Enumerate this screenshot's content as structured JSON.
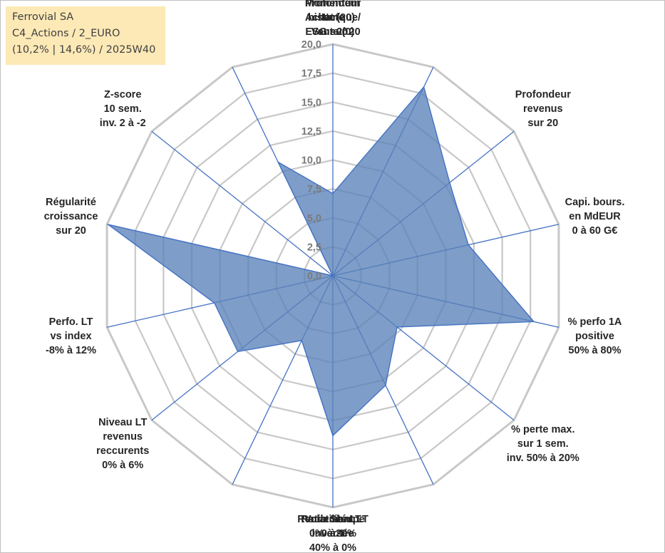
{
  "info": {
    "line1": "Ferrovial SA",
    "line2": "C4_Actions / 2_EURO",
    "line3": "(10,2% | 14,6%) / 2025W40"
  },
  "chart_data": {
    "type": "radar",
    "title": "",
    "rmax": 20,
    "ticks": [
      "0,0",
      "2,5",
      "5,0",
      "7,5",
      "10,0",
      "12,5",
      "15,0",
      "17,5",
      "20,0"
    ],
    "axes": [
      {
        "label": [
          "Note",
          "ESG sur 20"
        ],
        "value": 7.1
      },
      {
        "label": [
          "Profondeur",
          "historique",
          "sur 20"
        ],
        "value": 18.1
      },
      {
        "label": [
          "Profondeur",
          "revenus",
          "sur 20"
        ],
        "value": 12.9
      },
      {
        "label": [
          "Capi. bours.",
          "en MdEUR",
          "0 à 60 G€"
        ],
        "value": 12.0
      },
      {
        "label": [
          "% perfo 1A",
          "positive",
          "50% à 80%"
        ],
        "value": 17.8
      },
      {
        "label": [
          "% perte max.",
          "sur 1 sem.",
          "inv. 50% à 20%"
        ],
        "value": 7.1
      },
      {
        "label": [
          "Volatilité LT",
          "inversée",
          "40% à 0%"
        ],
        "value": 10.5
      },
      {
        "label": [
          "Ratio Sharpe",
          "0 à 1"
        ],
        "value": 13.8
      },
      {
        "label": [
          "Rendement LT",
          "0% à 20%"
        ],
        "value": 6.2
      },
      {
        "label": [
          "Niveau LT",
          "revenus",
          "reccurents",
          "0% à 6%"
        ],
        "value": 10.5
      },
      {
        "label": [
          "Perfo. LT",
          "vs index",
          "-8% à 12%"
        ],
        "value": 10.5
      },
      {
        "label": [
          "Régularité",
          "croissance",
          "sur 20"
        ],
        "value": 19.9
      },
      {
        "label": [
          "Z-score",
          "10 sem.",
          "inv. 2 à -2"
        ],
        "value": 0.0
      },
      {
        "label": [
          "Momentum",
          "Achat (20) /",
          "Vente (0)"
        ],
        "value": 10.9
      }
    ],
    "colors": {
      "fill": "#5a82b8",
      "stroke": "#4472c4",
      "grid": "#c8c8c8",
      "spoke": "#4472c4"
    }
  }
}
